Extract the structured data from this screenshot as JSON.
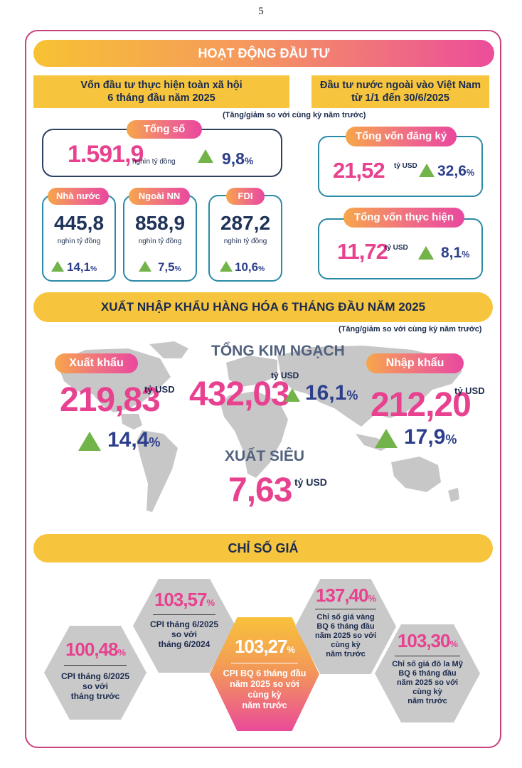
{
  "page_number": "5",
  "invest": {
    "title": "HOẠT ĐỘNG ĐẦU TƯ",
    "domestic_header": "Vốn đầu tư thực hiện toàn xã hội\n6 tháng đầu năm 2025",
    "fdi_header": "Đầu tư nước ngoài vào Việt Nam\ntừ 1/1 đến 30/6/2025",
    "note": "(Tăng/giảm so với cùng kỳ năm trước)",
    "total": {
      "label": "Tổng số",
      "value": "1.591,9",
      "unit": "nghìn tỷ đồng",
      "pct": "9,8",
      "pct_sign": "%"
    },
    "parts": [
      {
        "label": "Nhà nước",
        "value": "445,8",
        "unit": "nghìn tỷ đồng",
        "pct": "14,1",
        "pct_sign": "%"
      },
      {
        "label": "Ngoài NN",
        "value": "858,9",
        "unit": "nghìn tỷ đồng",
        "pct": "7,5",
        "pct_sign": "%"
      },
      {
        "label": "FDI",
        "value": "287,2",
        "unit": "nghìn tỷ đồng",
        "pct": "10,6",
        "pct_sign": "%"
      }
    ],
    "registered": {
      "label": "Tổng vốn đăng ký",
      "value": "21,52",
      "unit": "tỷ USD",
      "pct": "32,6",
      "pct_sign": "%"
    },
    "implemented": {
      "label": "Tổng vốn thực hiện",
      "value": "11,72",
      "unit": "tỷ USD",
      "pct": "8,1",
      "pct_sign": "%"
    }
  },
  "trade": {
    "title": "XUẤT NHẬP KHẨU HÀNG HÓA 6 THÁNG ĐẦU NĂM 2025",
    "note": "(Tăng/giảm so với cùng kỳ năm trước)",
    "total_label": "TỔNG KIM NGẠCH",
    "total_value": "432,03",
    "total_unit": "tỷ USD",
    "total_pct": "16,1",
    "export": {
      "label": "Xuất khẩu",
      "value": "219,83",
      "unit": "tỷ USD",
      "pct": "14,4"
    },
    "import": {
      "label": "Nhập khẩu",
      "value": "212,20",
      "unit": "tỷ USD",
      "pct": "17,9"
    },
    "surplus_label": "XUẤT SIÊU",
    "surplus_value": "7,63",
    "surplus_unit": "tỷ USD",
    "pct_sign": "%"
  },
  "prices": {
    "title": "CHỈ SỐ GIÁ",
    "pct_sign": "%",
    "items": [
      {
        "value": "103,57",
        "text": "CPI tháng 6/2025\nso với\ntháng 6/2024"
      },
      {
        "value": "100,48",
        "text": "CPI tháng 6/2025\nso với\ntháng trước"
      },
      {
        "value": "103,27",
        "text": "CPI BQ 6 tháng đầu\nnăm 2025 so với\ncùng kỳ\nnăm trước"
      },
      {
        "value": "137,40",
        "text": "Chỉ số giá vàng\nBQ 6 tháng đầu\nnăm 2025 so với\ncùng kỳ\nnăm trước"
      },
      {
        "value": "103,30",
        "text": "Chỉ số giá đô la Mỹ\nBQ 6 tháng đầu\nnăm 2025 so với\ncùng kỳ\nnăm trước"
      }
    ]
  },
  "colors": {
    "pink": "#e8418f",
    "navy": "#1b2a4e",
    "yellow": "#f6c53d",
    "green": "#72b44a",
    "blue": "#2d3f8c"
  }
}
